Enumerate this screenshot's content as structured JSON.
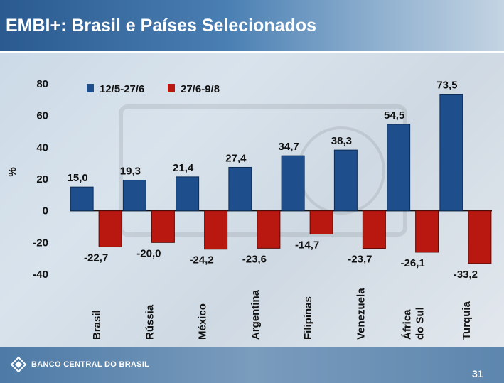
{
  "title": "EMBI+: Brasil e Países Selecionados",
  "footer": {
    "bank_name": "BANCO CENTRAL DO BRASIL",
    "page_number": "31"
  },
  "colors": {
    "series1": "#1f4e8c",
    "series2": "#b8180f"
  },
  "chart_data": {
    "type": "bar",
    "title": "",
    "ylabel": "%",
    "xlabel": "",
    "ylim": [
      -40,
      80
    ],
    "yticks": [
      "80",
      "60",
      "40",
      "20",
      "0",
      "-20",
      "-40"
    ],
    "categories": [
      "Brasil",
      "Rússia",
      "México",
      "Argentina",
      "Filipinas",
      "Venezuela",
      "África do Sul",
      "Turquia"
    ],
    "series": [
      {
        "name": "12/5-27/6",
        "values": [
          15.0,
          19.3,
          21.4,
          27.4,
          34.7,
          38.3,
          54.5,
          73.5
        ],
        "labels": [
          "15,0",
          "19,3",
          "21,4",
          "27,4",
          "34,7",
          "38,3",
          "54,5",
          "73,5"
        ]
      },
      {
        "name": "27/6-9/8",
        "values": [
          -22.7,
          -20.0,
          -24.2,
          -23.6,
          -14.7,
          -23.7,
          -26.1,
          -33.2
        ],
        "labels": [
          "-22,7",
          "-20,0",
          "-24,2",
          "-23,6",
          "-14,7",
          "-23,7",
          "-26,1",
          "-33,2"
        ]
      }
    ],
    "legend": "top",
    "grid": false
  }
}
